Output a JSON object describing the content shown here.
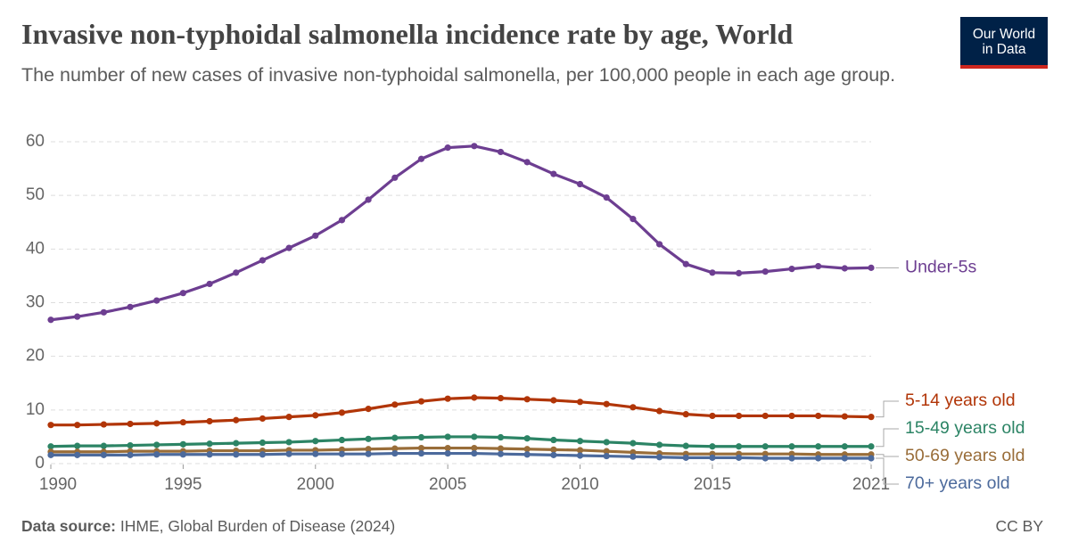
{
  "chart_data": {
    "type": "line",
    "title": "Invasive non-typhoidal salmonella incidence rate by age, World",
    "subtitle": "The number of new cases of invasive non-typhoidal salmonella, per 100,000 people in each age group.",
    "logo": [
      "Our World",
      "in Data"
    ],
    "source_label": "Data source:",
    "source": "IHME, Global Burden of Disease (2024)",
    "license": "CC BY",
    "x": [
      1990,
      1991,
      1992,
      1993,
      1994,
      1995,
      1996,
      1997,
      1998,
      1999,
      2000,
      2001,
      2002,
      2003,
      2004,
      2005,
      2006,
      2007,
      2008,
      2009,
      2010,
      2011,
      2012,
      2013,
      2014,
      2015,
      2016,
      2017,
      2018,
      2019,
      2020,
      2021
    ],
    "xlim": [
      1990,
      2021
    ],
    "xticks": [
      1990,
      1995,
      2000,
      2005,
      2010,
      2015,
      2021
    ],
    "ylim": [
      0,
      60
    ],
    "yticks": [
      0,
      10,
      20,
      30,
      40,
      50,
      60
    ],
    "grid": true,
    "series": [
      {
        "name": "Under-5s",
        "color": "#6d3e91",
        "values": [
          26.8,
          27.4,
          28.2,
          29.2,
          30.4,
          31.8,
          33.5,
          35.6,
          37.9,
          40.2,
          42.5,
          45.4,
          49.2,
          53.3,
          56.8,
          58.9,
          59.2,
          58.1,
          56.2,
          54.0,
          52.1,
          49.6,
          45.6,
          40.9,
          37.2,
          35.6,
          35.5,
          35.8,
          36.3,
          36.8,
          36.4,
          36.5
        ]
      },
      {
        "name": "5-14 years old",
        "color": "#b13507",
        "values": [
          7.2,
          7.2,
          7.3,
          7.4,
          7.5,
          7.7,
          7.9,
          8.1,
          8.4,
          8.7,
          9.0,
          9.5,
          10.2,
          11.0,
          11.6,
          12.1,
          12.3,
          12.2,
          12.0,
          11.8,
          11.5,
          11.1,
          10.5,
          9.8,
          9.2,
          8.9,
          8.9,
          8.9,
          8.9,
          8.9,
          8.8,
          8.7
        ]
      },
      {
        "name": "15-49 years old",
        "color": "#2c8465",
        "values": [
          3.2,
          3.3,
          3.3,
          3.4,
          3.5,
          3.6,
          3.7,
          3.8,
          3.9,
          4.0,
          4.2,
          4.4,
          4.6,
          4.8,
          4.9,
          5.0,
          5.0,
          4.9,
          4.7,
          4.4,
          4.2,
          4.0,
          3.8,
          3.5,
          3.3,
          3.2,
          3.2,
          3.2,
          3.2,
          3.2,
          3.2,
          3.2
        ]
      },
      {
        "name": "50-69 years old",
        "color": "#996d39",
        "values": [
          2.2,
          2.2,
          2.2,
          2.3,
          2.3,
          2.3,
          2.4,
          2.4,
          2.4,
          2.5,
          2.5,
          2.6,
          2.7,
          2.8,
          2.9,
          2.9,
          2.9,
          2.8,
          2.7,
          2.6,
          2.5,
          2.3,
          2.1,
          1.9,
          1.8,
          1.8,
          1.8,
          1.8,
          1.8,
          1.7,
          1.7,
          1.7
        ]
      },
      {
        "name": "70+ years old",
        "color": "#4c6a9c",
        "values": [
          1.6,
          1.6,
          1.6,
          1.6,
          1.7,
          1.7,
          1.7,
          1.7,
          1.7,
          1.8,
          1.8,
          1.8,
          1.8,
          1.9,
          1.9,
          1.9,
          1.9,
          1.8,
          1.7,
          1.6,
          1.5,
          1.4,
          1.3,
          1.2,
          1.1,
          1.1,
          1.1,
          1.0,
          1.0,
          1.0,
          1.0,
          1.0
        ]
      }
    ]
  }
}
